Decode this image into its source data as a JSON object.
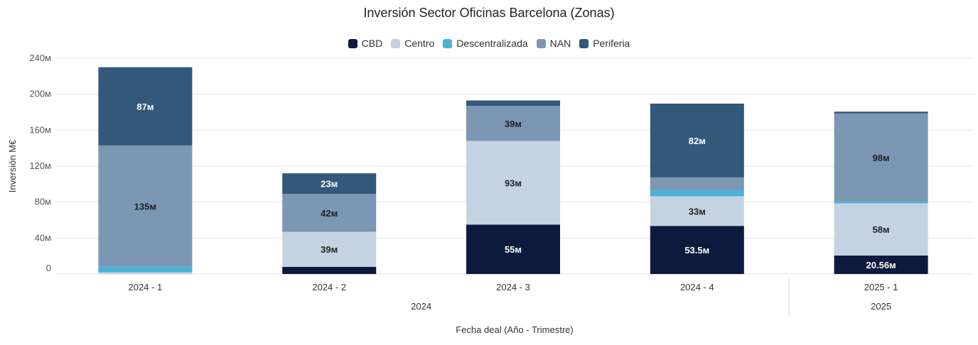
{
  "chart_data": {
    "type": "bar",
    "stacked": true,
    "title": "Inversión Sector Oficinas Barcelona (Zonas)",
    "xlabel": "Fecha deal (Año - Trimestre)",
    "ylabel": "Inversión M€",
    "ylim": [
      0,
      240
    ],
    "yticks": [
      "0",
      "40м",
      "80м",
      "120м",
      "160м",
      "200м",
      "240м"
    ],
    "grid": true,
    "legend_position": "top-center",
    "categories": [
      "2024 - 1",
      "2024 - 2",
      "2024 - 3",
      "2024 - 4",
      "2025 - 1"
    ],
    "groups": [
      {
        "label": "2024",
        "count": 4
      },
      {
        "label": "2025",
        "count": 1
      }
    ],
    "series": [
      {
        "name": "CBD",
        "color": "#0c1a3d",
        "values": [
          0,
          8,
          55,
          53.5,
          20.56
        ],
        "labels": [
          "",
          "",
          "55м",
          "53.5м",
          "20.56м"
        ],
        "label_color": "#ffffff"
      },
      {
        "name": "Centro",
        "color": "#c5d3e1",
        "values": [
          2,
          39,
          93,
          33,
          58
        ],
        "labels": [
          "",
          "39м",
          "93м",
          "33м",
          "58м"
        ],
        "label_color": "#222222"
      },
      {
        "name": "Descentralizada",
        "color": "#4bb3d9",
        "values": [
          6,
          0,
          0,
          7,
          2
        ],
        "labels": [
          "",
          "",
          "",
          "",
          ""
        ],
        "label_color": "#222222"
      },
      {
        "name": "NAN",
        "color": "#7b97b3",
        "values": [
          135,
          42,
          39,
          14,
          98
        ],
        "labels": [
          "135м",
          "42м",
          "39м",
          "",
          "98м"
        ],
        "label_color": "#222222"
      },
      {
        "name": "Periferia",
        "color": "#33587a",
        "values": [
          87,
          23,
          6,
          82,
          2
        ],
        "labels": [
          "87м",
          "23м",
          "",
          "82м",
          ""
        ],
        "label_color": "#ffffff"
      }
    ]
  }
}
